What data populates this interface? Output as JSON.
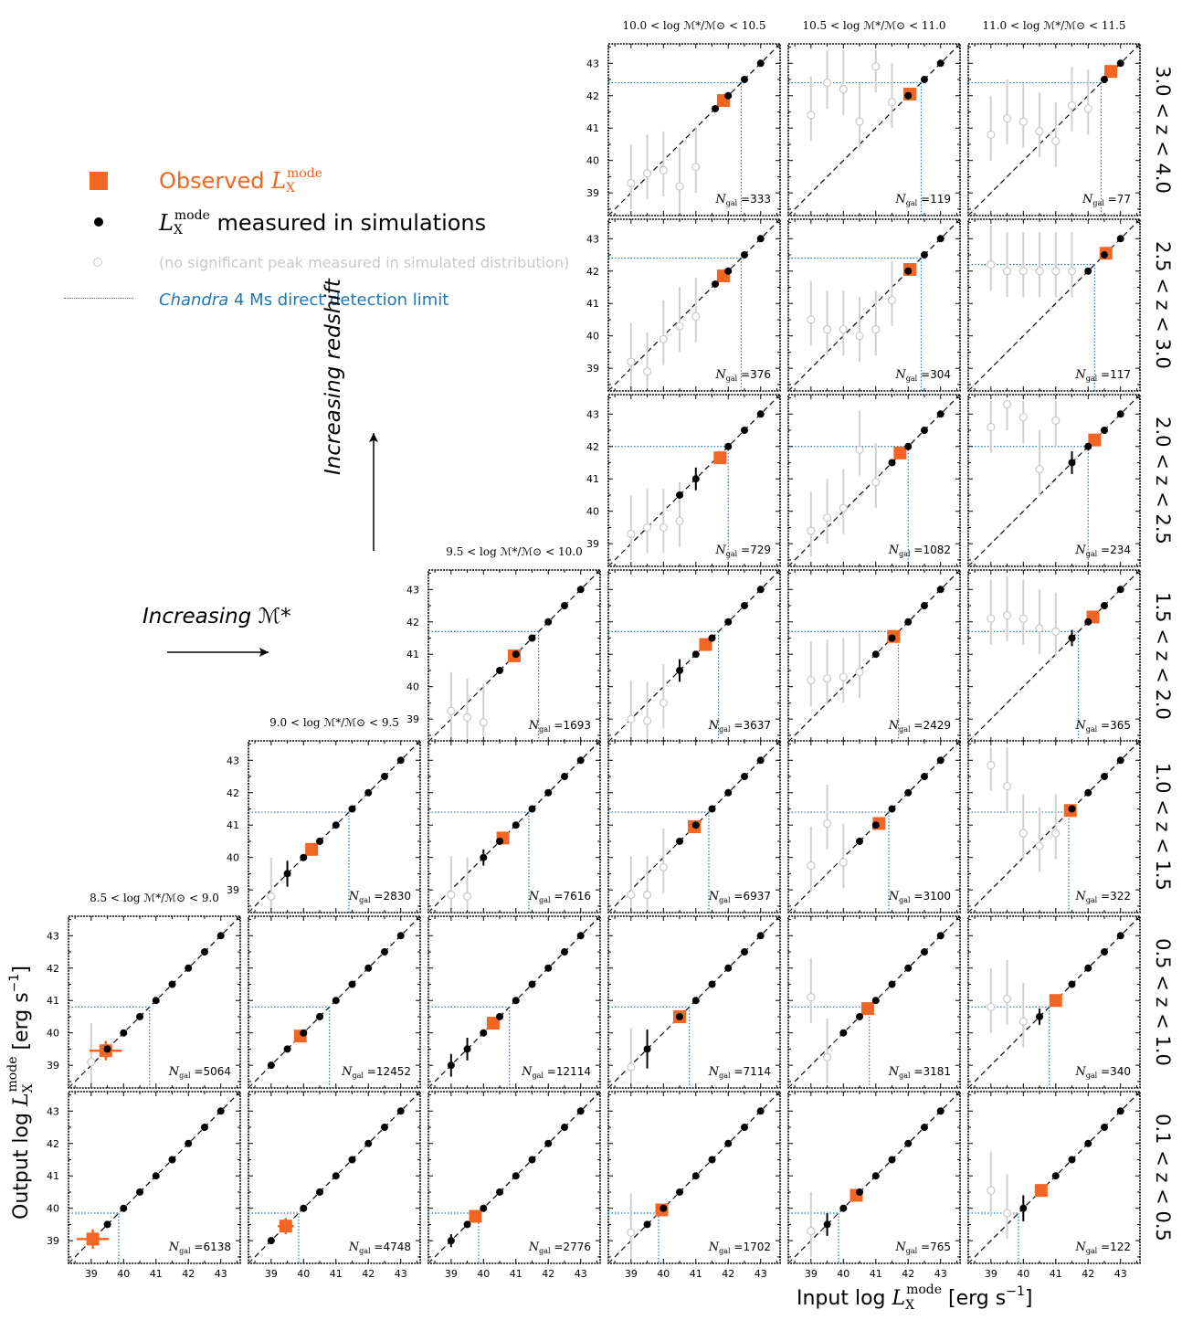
{
  "figure": {
    "xlabel": "Input log L_X^mode [erg s^-1]",
    "ylabel": "Output log L_X^mode [erg s^-1]",
    "xlabel_parts": {
      "main": "Input log ",
      "sym": "L",
      "sub": "X",
      "sup": "mode",
      "unit": " [erg s",
      "unit_sup": "−1",
      "close": "]"
    },
    "ylabel_parts": {
      "main": "Output log ",
      "sym": "L",
      "sub": "X",
      "sup": "mode",
      "unit": " [erg s",
      "unit_sup": "−1",
      "close": "]"
    }
  },
  "legend": {
    "observed": {
      "text": "Observed ",
      "sym": "L",
      "sub": "X",
      "sup": "mode",
      "color": "#f26522"
    },
    "simulated": {
      "sym": "L",
      "sub": "X",
      "sup": "mode",
      "text": " measured in simulations",
      "color": "#000000"
    },
    "no_peak": {
      "text": "(no significant peak measured in simulated distribution)",
      "color": "#c8c8c8"
    },
    "limit": {
      "italic": "Chandra",
      "text": " 4 Ms direct detection limit",
      "color": "#1f77b4"
    }
  },
  "annotations": {
    "mass_arrow": "Increasing ℳ*",
    "redshift_arrow": "Increasing redshift"
  },
  "colors": {
    "observed": "#f26522",
    "limit": "#1f77b4",
    "simulated": "#000000",
    "no_peak": "#c8c8c8"
  },
  "chart_data": {
    "type": "scatter",
    "axis_range": [
      38.3,
      43.6
    ],
    "tick_labels": [
      39,
      40,
      41,
      42,
      43
    ],
    "identity_line": true,
    "mass_bins": [
      "8.5 < log ℳ*/ℳ⊙ < 9.0",
      "9.0 < log ℳ*/ℳ⊙ < 9.5",
      "9.5 < log ℳ*/ℳ⊙ < 10.0",
      "10.0 < log ℳ*/ℳ⊙ < 10.5",
      "10.5 < log ℳ*/ℳ⊙ < 11.0",
      "11.0 < log ℳ*/ℳ⊙ < 11.5"
    ],
    "redshift_bins": [
      "3.0 < z < 4.0",
      "2.5 < z < 3.0",
      "2.0 < z < 2.5",
      "1.5 < z < 2.0",
      "1.0 < z < 1.5",
      "0.5 < z < 1.0",
      "0.1 < z < 0.5"
    ],
    "panels": [
      {
        "mass": 3,
        "z": 0,
        "ngal": "=333",
        "limit": 42.4,
        "obs": [
          41.85,
          41.85
        ],
        "solid": [
          41.6,
          42.0,
          42.5,
          43.0
        ],
        "hollow": [
          [
            39.0,
            39.3
          ],
          [
            39.5,
            39.6
          ],
          [
            40.0,
            39.7
          ],
          [
            40.5,
            39.2
          ],
          [
            41.0,
            39.8
          ]
        ],
        "solid_err": []
      },
      {
        "mass": 4,
        "z": 0,
        "ngal": "=119",
        "limit": 42.4,
        "obs": [
          42.05,
          42.05
        ],
        "solid": [
          42.0,
          42.5,
          43.0
        ],
        "hollow": [
          [
            39.0,
            41.4
          ],
          [
            39.5,
            42.4
          ],
          [
            40.0,
            42.2
          ],
          [
            40.5,
            41.2
          ],
          [
            41.0,
            42.9
          ],
          [
            41.5,
            41.8
          ]
        ],
        "solid_err": []
      },
      {
        "mass": 5,
        "z": 0,
        "ngal": "=77",
        "limit": 42.4,
        "obs": [
          42.7,
          42.75
        ],
        "solid": [
          42.5,
          43.0
        ],
        "hollow": [
          [
            39.0,
            40.8
          ],
          [
            39.5,
            41.3
          ],
          [
            40.0,
            41.2
          ],
          [
            40.5,
            40.9
          ],
          [
            41.0,
            40.6
          ],
          [
            41.5,
            41.7
          ],
          [
            42.0,
            41.6
          ]
        ],
        "solid_err": []
      },
      {
        "mass": 3,
        "z": 1,
        "ngal": "=376",
        "limit": 42.4,
        "obs": [
          41.85,
          41.85
        ],
        "solid": [
          41.6,
          42.0,
          42.5,
          43.0
        ],
        "hollow": [
          [
            39.0,
            39.2
          ],
          [
            39.5,
            38.9
          ],
          [
            40.0,
            39.9
          ],
          [
            40.5,
            40.3
          ],
          [
            41.0,
            40.6
          ]
        ],
        "solid_err": []
      },
      {
        "mass": 4,
        "z": 1,
        "ngal": "=304",
        "limit": 42.4,
        "obs": [
          42.05,
          42.05
        ],
        "solid": [
          42.0,
          42.5,
          43.0
        ],
        "hollow": [
          [
            39.0,
            40.5
          ],
          [
            39.5,
            40.2
          ],
          [
            40.0,
            40.2
          ],
          [
            40.5,
            40.0
          ],
          [
            41.0,
            40.2
          ],
          [
            41.5,
            41.1
          ]
        ],
        "solid_err": []
      },
      {
        "mass": 5,
        "z": 1,
        "ngal": "=117",
        "limit": 42.2,
        "obs": [
          42.55,
          42.55
        ],
        "solid": [
          42.0,
          42.5,
          43.0
        ],
        "hollow": [
          [
            39.0,
            42.2
          ],
          [
            39.5,
            42.0
          ],
          [
            40.0,
            42.0
          ],
          [
            40.5,
            42.0
          ],
          [
            41.0,
            42.0
          ],
          [
            41.5,
            42.0
          ]
        ],
        "solid_err": []
      },
      {
        "mass": 3,
        "z": 2,
        "ngal": "=729",
        "limit": 42.0,
        "obs": [
          41.75,
          41.65
        ],
        "solid": [
          40.5,
          41.0,
          42.0,
          42.5,
          43.0
        ],
        "hollow": [
          [
            39.0,
            39.3
          ],
          [
            39.5,
            39.5
          ],
          [
            40.0,
            39.5
          ],
          [
            40.5,
            39.7
          ]
        ],
        "solid_err": [
          [
            41.0,
            0.35
          ]
        ]
      },
      {
        "mass": 4,
        "z": 2,
        "ngal": "=1082",
        "limit": 42.0,
        "obs": [
          41.75,
          41.8
        ],
        "solid": [
          41.5,
          42.0,
          42.5,
          43.0
        ],
        "hollow": [
          [
            39.0,
            39.4
          ],
          [
            39.5,
            39.8
          ],
          [
            40.0,
            40.1
          ],
          [
            40.5,
            41.9
          ],
          [
            41.0,
            40.9
          ]
        ],
        "solid_err": []
      },
      {
        "mass": 5,
        "z": 2,
        "ngal": "=234",
        "limit": 42.0,
        "obs": [
          42.2,
          42.2
        ],
        "solid": [
          41.5,
          42.0,
          42.5,
          43.0
        ],
        "hollow": [
          [
            39.0,
            42.6
          ],
          [
            39.5,
            43.3
          ],
          [
            40.0,
            42.9
          ],
          [
            40.5,
            41.3
          ],
          [
            41.0,
            42.8
          ]
        ],
        "solid_err": [
          [
            41.5,
            0.35
          ]
        ]
      },
      {
        "mass": 2,
        "z": 3,
        "ngal": "=1693",
        "limit": 41.7,
        "obs": [
          40.95,
          40.95
        ],
        "solid": [
          40.5,
          41.0,
          41.5,
          42.0,
          42.5,
          43.0
        ],
        "hollow": [
          [
            39.0,
            39.25
          ],
          [
            39.5,
            39.05
          ],
          [
            40.0,
            38.9
          ]
        ],
        "solid_err": []
      },
      {
        "mass": 3,
        "z": 3,
        "ngal": "=3637",
        "limit": 41.7,
        "obs": [
          41.3,
          41.3
        ],
        "solid": [
          40.5,
          41.0,
          41.5,
          42.0,
          42.5,
          43.0
        ],
        "hollow": [
          [
            39.0,
            39.0
          ],
          [
            39.5,
            38.95
          ],
          [
            40.0,
            39.5
          ]
        ],
        "solid_err": [
          [
            40.5,
            0.35
          ]
        ]
      },
      {
        "mass": 4,
        "z": 3,
        "ngal": "=2429",
        "limit": 41.7,
        "obs": [
          41.55,
          41.55
        ],
        "solid": [
          41.0,
          41.5,
          42.0,
          42.5,
          43.0
        ],
        "hollow": [
          [
            39.0,
            40.2
          ],
          [
            39.5,
            40.25
          ],
          [
            40.0,
            40.3
          ],
          [
            40.5,
            40.45
          ]
        ],
        "solid_err": []
      },
      {
        "mass": 5,
        "z": 3,
        "ngal": "=365",
        "limit": 41.7,
        "obs": [
          42.15,
          42.15
        ],
        "solid": [
          41.5,
          42.0,
          42.5,
          43.0
        ],
        "hollow": [
          [
            39.0,
            42.1
          ],
          [
            39.5,
            42.2
          ],
          [
            40.0,
            42.1
          ],
          [
            40.5,
            41.8
          ],
          [
            41.0,
            41.7
          ]
        ],
        "solid_err": [
          [
            41.5,
            0.25
          ]
        ]
      },
      {
        "mass": 1,
        "z": 4,
        "ngal": "=2830",
        "limit": 41.4,
        "obs": [
          40.25,
          40.25
        ],
        "solid": [
          39.5,
          40.0,
          40.5,
          41.0,
          41.5,
          42.0,
          42.5,
          43.0
        ],
        "hollow": [
          [
            39.0,
            38.8
          ]
        ],
        "solid_err": [
          [
            39.5,
            0.4
          ]
        ]
      },
      {
        "mass": 2,
        "z": 4,
        "ngal": "=7616",
        "limit": 41.4,
        "obs": [
          40.6,
          40.6
        ],
        "solid": [
          40.0,
          40.5,
          41.0,
          41.5,
          42.0,
          42.5,
          43.0
        ],
        "hollow": [
          [
            39.0,
            38.85
          ],
          [
            39.5,
            38.8
          ]
        ],
        "solid_err": [
          [
            40.0,
            0.25
          ]
        ]
      },
      {
        "mass": 3,
        "z": 4,
        "ngal": "=6937",
        "limit": 41.4,
        "obs": [
          40.95,
          40.95
        ],
        "solid": [
          40.5,
          41.0,
          41.5,
          42.0,
          42.5,
          43.0
        ],
        "hollow": [
          [
            39.0,
            38.85
          ],
          [
            39.5,
            38.85
          ],
          [
            40.0,
            39.7
          ]
        ],
        "solid_err": []
      },
      {
        "mass": 4,
        "z": 4,
        "ngal": "=3100",
        "limit": 41.4,
        "obs": [
          41.1,
          41.05
        ],
        "solid": [
          40.5,
          41.0,
          41.5,
          42.0,
          42.5,
          43.0
        ],
        "hollow": [
          [
            39.0,
            39.75
          ],
          [
            39.5,
            41.05
          ],
          [
            40.0,
            39.85
          ]
        ],
        "solid_err": []
      },
      {
        "mass": 5,
        "z": 4,
        "ngal": "=322",
        "limit": 41.4,
        "obs": [
          41.45,
          41.45
        ],
        "solid": [
          41.5,
          42.0,
          42.5,
          43.0
        ],
        "hollow": [
          [
            39.0,
            42.85
          ],
          [
            39.5,
            42.2
          ],
          [
            40.0,
            40.75
          ],
          [
            40.5,
            40.35
          ],
          [
            41.0,
            40.75
          ]
        ],
        "solid_err": []
      },
      {
        "mass": 0,
        "z": 5,
        "ngal": "=5064",
        "limit": 40.8,
        "obs": [
          39.45,
          39.45
        ],
        "solid": [
          39.5,
          40.0,
          40.5,
          41.0,
          41.5,
          42.0,
          42.5,
          43.0
        ],
        "hollow": [
          [
            39.0,
            39.1
          ]
        ],
        "solid_err": [],
        "obs_err": [
          0.5,
          0.3
        ]
      },
      {
        "mass": 1,
        "z": 5,
        "ngal": "=12452",
        "limit": 40.8,
        "obs": [
          39.9,
          39.9
        ],
        "solid": [
          39.0,
          39.5,
          40.0,
          40.5,
          41.0,
          41.5,
          42.0,
          42.5,
          43.0
        ],
        "hollow": [],
        "solid_err": []
      },
      {
        "mass": 2,
        "z": 5,
        "ngal": "=12114",
        "limit": 40.8,
        "obs": [
          40.3,
          40.3
        ],
        "solid": [
          39.0,
          39.5,
          40.0,
          40.5,
          41.0,
          41.5,
          42.0,
          42.5,
          43.0
        ],
        "hollow": [],
        "solid_err": [
          [
            39.0,
            0.35
          ],
          [
            39.5,
            0.35
          ]
        ]
      },
      {
        "mass": 3,
        "z": 5,
        "ngal": "=7114",
        "limit": 40.8,
        "obs": [
          40.5,
          40.5
        ],
        "solid": [
          39.5,
          40.5,
          41.0,
          41.5,
          42.0,
          42.5,
          43.0
        ],
        "hollow": [
          [
            39.0,
            38.95
          ]
        ],
        "solid_err": [
          [
            39.5,
            0.6
          ]
        ]
      },
      {
        "mass": 4,
        "z": 5,
        "ngal": "=3181",
        "limit": 40.8,
        "obs": [
          40.75,
          40.75
        ],
        "solid": [
          40.0,
          40.5,
          41.0,
          41.5,
          42.0,
          42.5,
          43.0
        ],
        "hollow": [
          [
            39.0,
            41.1
          ],
          [
            39.5,
            39.25
          ]
        ],
        "solid_err": []
      },
      {
        "mass": 5,
        "z": 5,
        "ngal": "=340",
        "limit": 40.8,
        "obs": [
          41.0,
          41.0
        ],
        "solid": [
          40.5,
          41.5,
          42.0,
          42.5,
          43.0
        ],
        "hollow": [
          [
            39.0,
            40.8
          ],
          [
            39.5,
            41.05
          ],
          [
            40.0,
            40.35
          ]
        ],
        "solid_err": [
          [
            40.5,
            0.25
          ]
        ]
      },
      {
        "mass": 0,
        "z": 6,
        "ngal": "=6138",
        "limit": 39.85,
        "obs": [
          39.05,
          39.05
        ],
        "solid": [
          39.5,
          40.0,
          40.5,
          41.0,
          41.5,
          42.0,
          42.5,
          43.0
        ],
        "hollow": [],
        "solid_err": [],
        "obs_err": [
          0.5,
          0.3
        ]
      },
      {
        "mass": 1,
        "z": 6,
        "ngal": "=4748",
        "limit": 39.85,
        "obs": [
          39.45,
          39.45
        ],
        "solid": [
          39.0,
          40.0,
          40.5,
          41.0,
          41.5,
          42.0,
          42.5,
          43.0
        ],
        "hollow": [],
        "solid_err": [],
        "obs_err": [
          0.25,
          0.25
        ]
      },
      {
        "mass": 2,
        "z": 6,
        "ngal": "=2776",
        "limit": 39.85,
        "obs": [
          39.75,
          39.75
        ],
        "solid": [
          39.0,
          39.5,
          40.0,
          40.5,
          41.0,
          41.5,
          42.0,
          42.5,
          43.0
        ],
        "hollow": [],
        "solid_err": [
          [
            39.0,
            0.2
          ]
        ]
      },
      {
        "mass": 3,
        "z": 6,
        "ngal": "=1702",
        "limit": 39.85,
        "obs": [
          39.95,
          39.95
        ],
        "solid": [
          39.5,
          40.0,
          40.5,
          41.0,
          41.5,
          42.0,
          42.5,
          43.0
        ],
        "hollow": [
          [
            39.0,
            39.25
          ]
        ],
        "solid_err": []
      },
      {
        "mass": 4,
        "z": 6,
        "ngal": "=765",
        "limit": 39.85,
        "obs": [
          40.4,
          40.4
        ],
        "solid": [
          39.5,
          40.0,
          40.5,
          41.0,
          41.5,
          42.0,
          42.5,
          43.0
        ],
        "hollow": [
          [
            39.0,
            39.3
          ]
        ],
        "solid_err": [
          [
            39.5,
            0.35
          ]
        ]
      },
      {
        "mass": 5,
        "z": 6,
        "ngal": "=122",
        "limit": 39.85,
        "obs": [
          40.55,
          40.55
        ],
        "solid": [
          40.0,
          41.0,
          41.5,
          42.0,
          42.5,
          43.0
        ],
        "hollow": [
          [
            39.0,
            40.55
          ],
          [
            39.5,
            39.85
          ]
        ],
        "solid_err": [
          [
            40.0,
            0.4
          ]
        ]
      }
    ]
  }
}
